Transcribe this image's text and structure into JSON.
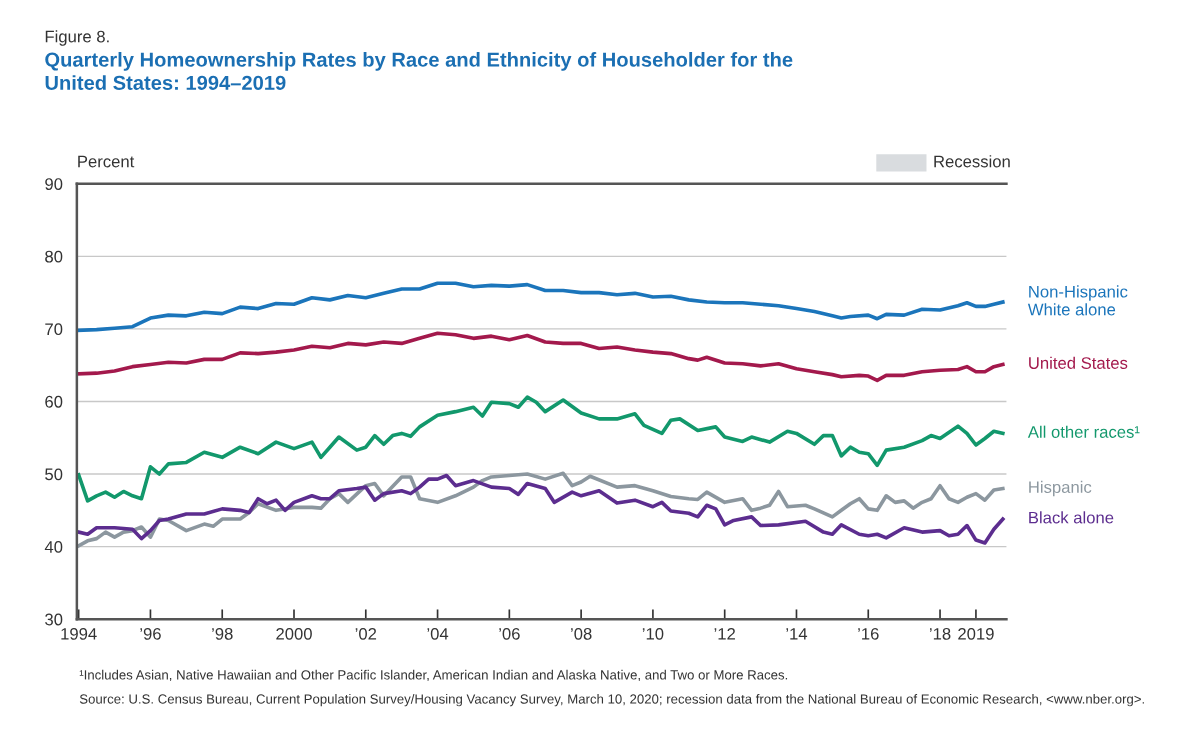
{
  "chart_data": {
    "type": "line",
    "title": "Quarterly Homeownership Rates by Race and Ethnicity of Householder for the\nUnited States: 1994–2019",
    "ylabel": "Percent",
    "annotations": [
      "Figure 8.",
      "Recession",
      "¹Includes Asian, Native Hawaiian and Other Pacific Islander, American Indian and Alaska Native, and Two or More Races.",
      "Source: U.S. Census Bureau, Current Population Survey/Housing Vacancy Survey, March 10, 2020; recession data from the National Bureau of Economic Research, <www.nber.org>."
    ],
    "xlim": [
      1993.95,
      2019.85
    ],
    "xticks": [
      {
        "value": 1994,
        "label": "1994"
      },
      {
        "value": 1996,
        "label": "’96"
      },
      {
        "value": 1998,
        "label": "’98"
      },
      {
        "value": 2000,
        "label": "2000"
      },
      {
        "value": 2002,
        "label": "’02"
      },
      {
        "value": 2004,
        "label": "’04"
      },
      {
        "value": 2006,
        "label": "’06"
      },
      {
        "value": 2008,
        "label": "’08"
      },
      {
        "value": 2010,
        "label": "’10"
      },
      {
        "value": 2012,
        "label": "’12"
      },
      {
        "value": 2014,
        "label": "’14"
      },
      {
        "value": 2016,
        "label": "’16"
      },
      {
        "value": 2018,
        "label": "’18"
      },
      {
        "value": 2019,
        "label": "2019"
      }
    ],
    "ylim": [
      30,
      90
    ],
    "yticks": [
      30,
      40,
      50,
      60,
      70,
      80,
      90
    ],
    "grid": "y",
    "legend": false,
    "marker": "none",
    "line_style": "solid",
    "series": [
      {
        "name": "Non-Hispanic\nWhite alone",
        "color": "#1b75bb",
        "x": [
          1994,
          1994.5,
          1995,
          1995.5,
          1996,
          1996.5,
          1997,
          1997.5,
          1998,
          1998.5,
          1999,
          1999.5,
          2000,
          2000.5,
          2001,
          2001.5,
          2002,
          2002.5,
          2003,
          2003.5,
          2004,
          2004.5,
          2005,
          2005.5,
          2006,
          2006.5,
          2007,
          2007.5,
          2008,
          2008.5,
          2009,
          2009.5,
          2010,
          2010.5,
          2011,
          2011.5,
          2012,
          2012.5,
          2013,
          2013.5,
          2014,
          2014.5,
          2015,
          2015.25,
          2015.5,
          2016,
          2016.25,
          2016.5,
          2017,
          2017.5,
          2018,
          2018.5,
          2018.75,
          2019,
          2019.25,
          2019.5,
          2019.75
        ],
        "values": [
          69.8,
          69.9,
          70.1,
          70.3,
          71.5,
          71.9,
          71.8,
          72.3,
          72.1,
          73.0,
          72.8,
          73.5,
          73.4,
          74.3,
          74.0,
          74.6,
          74.3,
          74.9,
          75.5,
          75.5,
          76.3,
          76.3,
          75.8,
          76.0,
          75.9,
          76.1,
          75.3,
          75.3,
          75.0,
          75.0,
          74.7,
          74.9,
          74.4,
          74.5,
          74.0,
          73.7,
          73.6,
          73.6,
          73.4,
          73.2,
          72.8,
          72.4,
          71.8,
          71.5,
          71.7,
          71.9,
          71.4,
          72.0,
          71.9,
          72.7,
          72.6,
          73.2,
          73.6,
          73.1,
          73.1,
          73.4,
          73.7
        ]
      },
      {
        "name": "United States",
        "color": "#a3194c",
        "x": [
          1994,
          1994.5,
          1995,
          1995.5,
          1996,
          1996.5,
          1997,
          1997.5,
          1998,
          1998.5,
          1999,
          1999.5,
          2000,
          2000.5,
          2001,
          2001.5,
          2002,
          2002.5,
          2003,
          2003.5,
          2004,
          2004.5,
          2005,
          2005.5,
          2006,
          2006.5,
          2007,
          2007.5,
          2008,
          2008.5,
          2009,
          2009.5,
          2010,
          2010.5,
          2011,
          2011.25,
          2011.5,
          2012,
          2012.5,
          2013,
          2013.5,
          2014,
          2014.5,
          2015,
          2015.25,
          2015.75,
          2016,
          2016.25,
          2016.5,
          2017,
          2017.5,
          2018,
          2018.5,
          2018.75,
          2019,
          2019.25,
          2019.5,
          2019.75
        ],
        "values": [
          63.8,
          63.9,
          64.2,
          64.8,
          65.1,
          65.4,
          65.3,
          65.8,
          65.8,
          66.7,
          66.6,
          66.8,
          67.1,
          67.6,
          67.4,
          68.0,
          67.8,
          68.2,
          68.0,
          68.7,
          69.4,
          69.2,
          68.7,
          69.0,
          68.5,
          69.1,
          68.2,
          68.0,
          68.0,
          67.3,
          67.5,
          67.1,
          66.8,
          66.6,
          65.9,
          65.7,
          66.1,
          65.3,
          65.2,
          64.9,
          65.2,
          64.5,
          64.1,
          63.7,
          63.4,
          63.6,
          63.5,
          62.9,
          63.6,
          63.6,
          64.1,
          64.3,
          64.4,
          64.8,
          64.1,
          64.1,
          64.8,
          65.1
        ]
      },
      {
        "name": "All other races¹",
        "color": "#12986c",
        "x": [
          1994,
          1994.25,
          1994.5,
          1994.75,
          1995,
          1995.25,
          1995.5,
          1995.75,
          1996,
          1996.25,
          1996.5,
          1997,
          1997.5,
          1998,
          1998.5,
          1999,
          1999.5,
          2000,
          2000.5,
          2000.75,
          2001,
          2001.25,
          2001.75,
          2002,
          2002.25,
          2002.5,
          2002.75,
          2003,
          2003.25,
          2003.5,
          2004,
          2004.5,
          2005,
          2005.25,
          2005.5,
          2006,
          2006.25,
          2006.5,
          2006.75,
          2007,
          2007.5,
          2008,
          2008.5,
          2009,
          2009.5,
          2009.75,
          2010.25,
          2010.5,
          2010.75,
          2011.25,
          2011.75,
          2012,
          2012.5,
          2012.75,
          2013.25,
          2013.75,
          2014,
          2014.5,
          2014.75,
          2015,
          2015.25,
          2015.5,
          2015.75,
          2016,
          2016.25,
          2016.5,
          2017,
          2017.5,
          2017.75,
          2018,
          2018.5,
          2018.75,
          2019,
          2019.25,
          2019.5,
          2019.75
        ],
        "values": [
          49.9,
          46.3,
          47.0,
          47.5,
          46.8,
          47.6,
          47.0,
          46.6,
          51.0,
          50.0,
          51.4,
          51.6,
          53.0,
          52.3,
          53.7,
          52.8,
          54.4,
          53.5,
          54.4,
          52.3,
          53.7,
          55.1,
          53.3,
          53.7,
          55.3,
          54.1,
          55.3,
          55.6,
          55.2,
          56.5,
          58.1,
          58.6,
          59.2,
          58.0,
          59.9,
          59.7,
          59.2,
          60.6,
          59.9,
          58.6,
          60.2,
          58.4,
          57.6,
          57.6,
          58.3,
          56.7,
          55.6,
          57.4,
          57.6,
          56.0,
          56.5,
          55.1,
          54.5,
          55.1,
          54.4,
          55.9,
          55.6,
          54.1,
          55.3,
          55.3,
          52.5,
          53.7,
          53.0,
          52.8,
          51.2,
          53.3,
          53.7,
          54.6,
          55.3,
          54.9,
          56.6,
          55.6,
          54.0,
          54.9,
          55.9,
          55.6
        ]
      },
      {
        "name": "Hispanic",
        "color": "#8c979f",
        "x": [
          1994,
          1994.25,
          1994.5,
          1994.75,
          1995,
          1995.25,
          1995.5,
          1995.75,
          1996,
          1996.25,
          1996.5,
          1997,
          1997.5,
          1997.75,
          1998,
          1998.5,
          1998.75,
          1999,
          1999.5,
          2000,
          2000.5,
          2000.75,
          2001,
          2001.25,
          2001.5,
          2002,
          2002.25,
          2002.5,
          2003,
          2003.25,
          2003.5,
          2004,
          2004.5,
          2005,
          2005.25,
          2005.5,
          2006,
          2006.5,
          2007,
          2007.5,
          2007.75,
          2008,
          2008.25,
          2009,
          2009.5,
          2010,
          2010.5,
          2011,
          2011.25,
          2011.5,
          2012,
          2012.5,
          2012.75,
          2013,
          2013.25,
          2013.5,
          2013.75,
          2014.25,
          2014.5,
          2015,
          2015.25,
          2015.5,
          2015.75,
          2016,
          2016.25,
          2016.5,
          2016.75,
          2017,
          2017.25,
          2017.5,
          2017.75,
          2018,
          2018.25,
          2018.5,
          2018.75,
          2019,
          2019.25,
          2019.5,
          2019.75
        ],
        "values": [
          40.1,
          40.8,
          41.1,
          42.0,
          41.3,
          42.0,
          42.2,
          42.7,
          41.3,
          43.8,
          43.6,
          42.2,
          43.1,
          42.8,
          43.8,
          43.8,
          44.7,
          45.9,
          45.0,
          45.4,
          45.4,
          45.3,
          46.6,
          47.3,
          46.1,
          48.4,
          48.7,
          47.0,
          49.6,
          49.6,
          46.6,
          46.1,
          47.0,
          48.2,
          49.1,
          49.6,
          49.8,
          50.0,
          49.3,
          50.1,
          48.4,
          48.9,
          49.7,
          48.2,
          48.4,
          47.7,
          46.9,
          46.6,
          46.5,
          47.5,
          46.1,
          46.6,
          45.0,
          45.3,
          45.7,
          47.6,
          45.5,
          45.7,
          45.2,
          44.1,
          45.0,
          45.9,
          46.6,
          45.2,
          45.0,
          47.0,
          46.1,
          46.3,
          45.3,
          46.1,
          46.6,
          48.4,
          46.6,
          46.1,
          46.8,
          47.3,
          46.4,
          47.8,
          48.0
        ]
      },
      {
        "name": "Black alone",
        "color": "#5c2d8f",
        "x": [
          1994,
          1994.25,
          1994.5,
          1995,
          1995.5,
          1995.75,
          1996,
          1996.25,
          1996.5,
          1997,
          1997.5,
          1998,
          1998.5,
          1998.75,
          1999,
          1999.25,
          1999.5,
          1999.75,
          2000,
          2000.5,
          2000.75,
          2001,
          2001.25,
          2001.75,
          2002,
          2002.25,
          2002.5,
          2003,
          2003.25,
          2003.5,
          2003.75,
          2004,
          2004.25,
          2004.5,
          2005,
          2005.5,
          2006,
          2006.25,
          2006.5,
          2007,
          2007.25,
          2007.75,
          2008,
          2008.5,
          2009,
          2009.5,
          2010,
          2010.25,
          2010.5,
          2011,
          2011.25,
          2011.5,
          2011.75,
          2012,
          2012.25,
          2012.75,
          2013,
          2013.5,
          2014.25,
          2014.75,
          2015,
          2015.25,
          2015.75,
          2016,
          2016.25,
          2016.5,
          2017,
          2017.5,
          2018,
          2018.25,
          2018.5,
          2018.75,
          2019,
          2019.25,
          2019.5,
          2019.75
        ],
        "values": [
          42.0,
          41.7,
          42.6,
          42.6,
          42.4,
          41.1,
          42.2,
          43.6,
          43.8,
          44.5,
          44.5,
          45.2,
          45.0,
          44.7,
          46.6,
          45.9,
          46.4,
          45.0,
          46.1,
          47.0,
          46.6,
          46.6,
          47.7,
          48.0,
          48.2,
          46.4,
          47.3,
          47.7,
          47.3,
          48.2,
          49.3,
          49.3,
          49.8,
          48.4,
          49.1,
          48.2,
          48.0,
          47.2,
          48.7,
          48.0,
          46.1,
          47.5,
          47.0,
          47.7,
          46.0,
          46.4,
          45.5,
          46.1,
          44.9,
          44.6,
          44.1,
          45.7,
          45.2,
          43.0,
          43.6,
          44.1,
          42.9,
          43.0,
          43.5,
          42.0,
          41.7,
          43.0,
          41.7,
          41.5,
          41.7,
          41.2,
          42.6,
          42.0,
          42.2,
          41.5,
          41.7,
          42.9,
          40.9,
          40.5,
          42.4,
          43.8
        ]
      }
    ]
  }
}
